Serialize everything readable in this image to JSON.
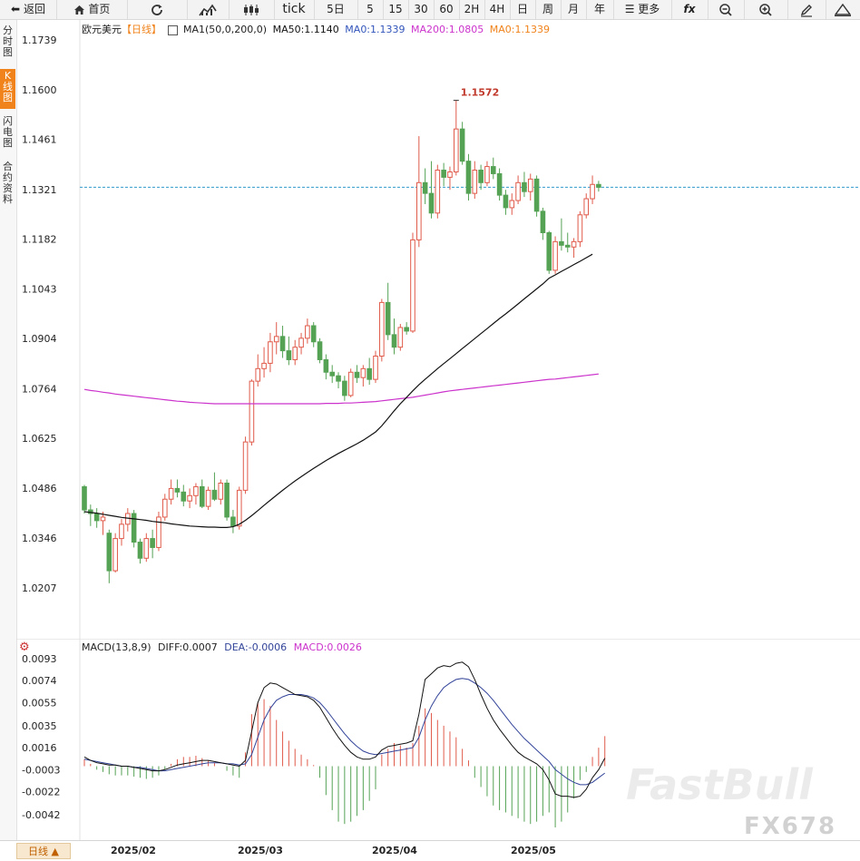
{
  "toolbar": {
    "back_label": "返回",
    "home_label": "首页",
    "tick_label": "tick",
    "periods": [
      "5日",
      "5",
      "15",
      "30",
      "60",
      "2H",
      "4H",
      "日",
      "周",
      "月",
      "年"
    ],
    "more_label": "更多"
  },
  "sidebar": {
    "tabs": [
      "分时图",
      "K线图",
      "闪电图",
      "合约资料"
    ],
    "active_index": 1
  },
  "legend_main": {
    "symbol": "欧元美元",
    "period": "【日线】",
    "ma1": "MA1(50,0,200,0)",
    "ma50": "MA50:1.1140",
    "ma0_blue": "MA0:1.1339",
    "ma200": "MA200:1.0805",
    "ma0_orange": "MA0:1.1339"
  },
  "legend_macd": {
    "name": "MACD(13,8,9)",
    "diff": "DIFF:0.0007",
    "dea": "DEA:-0.0006",
    "macd": "MACD:0.0026"
  },
  "bottom": {
    "period_button": "日线",
    "date_labels": [
      "2025/02",
      "2025/03",
      "2025/04",
      "2025/05"
    ]
  },
  "watermark": {
    "brand": "FastBull",
    "code": "FX678"
  },
  "colors": {
    "up": "#e05a4a",
    "down": "#55a255",
    "ma50": "#111111",
    "ma200": "#cc33cc",
    "current_line": "#3399cc",
    "diff": "#111111",
    "dea": "#334499",
    "accent": "#f0831b"
  },
  "chart_data": [
    {
      "type": "candlestick",
      "title": "欧元美元【日线】",
      "y_ticks": [
        "1.1739",
        "1.1600",
        "1.1461",
        "1.1321",
        "1.1182",
        "1.1043",
        "1.0904",
        "1.0764",
        "1.0625",
        "1.0486",
        "1.0346",
        "1.0207"
      ],
      "ylim": [
        1.015,
        1.177
      ],
      "current_price": 1.1327,
      "high_annotation": "1.1572",
      "x_labels": [
        "2025/02",
        "2025/03",
        "2025/04",
        "2025/05"
      ],
      "candles": [
        {
          "o": 1.049,
          "h": 1.0495,
          "l": 1.0415,
          "c": 1.0425
        },
        {
          "o": 1.0425,
          "h": 1.044,
          "l": 1.038,
          "c": 1.0415
        },
        {
          "o": 1.0415,
          "h": 1.043,
          "l": 1.0375,
          "c": 1.0395
        },
        {
          "o": 1.0395,
          "h": 1.042,
          "l": 1.0355,
          "c": 1.0405
        },
        {
          "o": 1.036,
          "h": 1.037,
          "l": 1.022,
          "c": 1.0255
        },
        {
          "o": 1.0255,
          "h": 1.036,
          "l": 1.025,
          "c": 1.0345
        },
        {
          "o": 1.0345,
          "h": 1.04,
          "l": 1.0325,
          "c": 1.0385
        },
        {
          "o": 1.0385,
          "h": 1.043,
          "l": 1.0365,
          "c": 1.0415
        },
        {
          "o": 1.0415,
          "h": 1.0425,
          "l": 1.032,
          "c": 1.0335
        },
        {
          "o": 1.0335,
          "h": 1.0345,
          "l": 1.0275,
          "c": 1.029
        },
        {
          "o": 1.029,
          "h": 1.036,
          "l": 1.028,
          "c": 1.0345
        },
        {
          "o": 1.0345,
          "h": 1.037,
          "l": 1.029,
          "c": 1.032
        },
        {
          "o": 1.032,
          "h": 1.042,
          "l": 1.031,
          "c": 1.0405
        },
        {
          "o": 1.0405,
          "h": 1.047,
          "l": 1.0395,
          "c": 1.0455
        },
        {
          "o": 1.0455,
          "h": 1.051,
          "l": 1.044,
          "c": 1.0485
        },
        {
          "o": 1.0485,
          "h": 1.051,
          "l": 1.046,
          "c": 1.0475
        },
        {
          "o": 1.0475,
          "h": 1.0495,
          "l": 1.0435,
          "c": 1.045
        },
        {
          "o": 1.045,
          "h": 1.0485,
          "l": 1.043,
          "c": 1.0465
        },
        {
          "o": 1.0465,
          "h": 1.05,
          "l": 1.044,
          "c": 1.049
        },
        {
          "o": 1.049,
          "h": 1.051,
          "l": 1.043,
          "c": 1.0435
        },
        {
          "o": 1.0435,
          "h": 1.049,
          "l": 1.0425,
          "c": 1.048
        },
        {
          "o": 1.048,
          "h": 1.053,
          "l": 1.045,
          "c": 1.0455
        },
        {
          "o": 1.0455,
          "h": 1.051,
          "l": 1.044,
          "c": 1.05
        },
        {
          "o": 1.05,
          "h": 1.051,
          "l": 1.0395,
          "c": 1.0405
        },
        {
          "o": 1.0405,
          "h": 1.0425,
          "l": 1.036,
          "c": 1.038
        },
        {
          "o": 1.038,
          "h": 1.049,
          "l": 1.037,
          "c": 1.048
        },
        {
          "o": 1.048,
          "h": 1.063,
          "l": 1.047,
          "c": 1.0615
        },
        {
          "o": 1.0615,
          "h": 1.079,
          "l": 1.0605,
          "c": 1.0785
        },
        {
          "o": 1.0785,
          "h": 1.086,
          "l": 1.077,
          "c": 1.082
        },
        {
          "o": 1.082,
          "h": 1.088,
          "l": 1.0795,
          "c": 1.0835
        },
        {
          "o": 1.0835,
          "h": 1.092,
          "l": 1.081,
          "c": 1.0895
        },
        {
          "o": 1.0895,
          "h": 1.095,
          "l": 1.086,
          "c": 1.091
        },
        {
          "o": 1.091,
          "h": 1.094,
          "l": 1.085,
          "c": 1.087
        },
        {
          "o": 1.087,
          "h": 1.091,
          "l": 1.083,
          "c": 1.0845
        },
        {
          "o": 1.0845,
          "h": 1.09,
          "l": 1.083,
          "c": 1.088
        },
        {
          "o": 1.088,
          "h": 1.092,
          "l": 1.086,
          "c": 1.0905
        },
        {
          "o": 1.0905,
          "h": 1.096,
          "l": 1.089,
          "c": 1.094
        },
        {
          "o": 1.094,
          "h": 1.095,
          "l": 1.088,
          "c": 1.0895
        },
        {
          "o": 1.0895,
          "h": 1.0905,
          "l": 1.0835,
          "c": 1.0845
        },
        {
          "o": 1.0845,
          "h": 1.086,
          "l": 1.079,
          "c": 1.081
        },
        {
          "o": 1.081,
          "h": 1.083,
          "l": 1.078,
          "c": 1.08
        },
        {
          "o": 1.08,
          "h": 1.081,
          "l": 1.0765,
          "c": 1.0785
        },
        {
          "o": 1.0785,
          "h": 1.08,
          "l": 1.073,
          "c": 1.0745
        },
        {
          "o": 1.0745,
          "h": 1.082,
          "l": 1.074,
          "c": 1.081
        },
        {
          "o": 1.081,
          "h": 1.083,
          "l": 1.078,
          "c": 1.0795
        },
        {
          "o": 1.0795,
          "h": 1.083,
          "l": 1.077,
          "c": 1.082
        },
        {
          "o": 1.082,
          "h": 1.085,
          "l": 1.0775,
          "c": 1.079
        },
        {
          "o": 1.079,
          "h": 1.087,
          "l": 1.078,
          "c": 1.0855
        },
        {
          "o": 1.0855,
          "h": 1.1015,
          "l": 1.084,
          "c": 1.1005
        },
        {
          "o": 1.1005,
          "h": 1.106,
          "l": 1.09,
          "c": 1.0915
        },
        {
          "o": 1.0915,
          "h": 1.096,
          "l": 1.086,
          "c": 1.088
        },
        {
          "o": 1.088,
          "h": 1.0945,
          "l": 1.087,
          "c": 1.0935
        },
        {
          "o": 1.0935,
          "h": 1.095,
          "l": 1.0915,
          "c": 1.0925
        },
        {
          "o": 1.0925,
          "h": 1.12,
          "l": 1.092,
          "c": 1.118
        },
        {
          "o": 1.118,
          "h": 1.147,
          "l": 1.116,
          "c": 1.134
        },
        {
          "o": 1.134,
          "h": 1.138,
          "l": 1.128,
          "c": 1.131
        },
        {
          "o": 1.131,
          "h": 1.14,
          "l": 1.124,
          "c": 1.1255
        },
        {
          "o": 1.1255,
          "h": 1.139,
          "l": 1.124,
          "c": 1.1375
        },
        {
          "o": 1.1375,
          "h": 1.1395,
          "l": 1.133,
          "c": 1.1355
        },
        {
          "o": 1.1355,
          "h": 1.1385,
          "l": 1.132,
          "c": 1.137
        },
        {
          "o": 1.137,
          "h": 1.157,
          "l": 1.136,
          "c": 1.149
        },
        {
          "o": 1.149,
          "h": 1.151,
          "l": 1.139,
          "c": 1.14
        },
        {
          "o": 1.14,
          "h": 1.142,
          "l": 1.129,
          "c": 1.131
        },
        {
          "o": 1.131,
          "h": 1.14,
          "l": 1.1295,
          "c": 1.1375
        },
        {
          "o": 1.1375,
          "h": 1.139,
          "l": 1.132,
          "c": 1.134
        },
        {
          "o": 1.134,
          "h": 1.14,
          "l": 1.133,
          "c": 1.1385
        },
        {
          "o": 1.1385,
          "h": 1.141,
          "l": 1.135,
          "c": 1.1365
        },
        {
          "o": 1.1365,
          "h": 1.138,
          "l": 1.129,
          "c": 1.1305
        },
        {
          "o": 1.1305,
          "h": 1.132,
          "l": 1.125,
          "c": 1.127
        },
        {
          "o": 1.127,
          "h": 1.131,
          "l": 1.125,
          "c": 1.129
        },
        {
          "o": 1.129,
          "h": 1.136,
          "l": 1.128,
          "c": 1.134
        },
        {
          "o": 1.134,
          "h": 1.137,
          "l": 1.13,
          "c": 1.1315
        },
        {
          "o": 1.1315,
          "h": 1.1365,
          "l": 1.129,
          "c": 1.135
        },
        {
          "o": 1.135,
          "h": 1.136,
          "l": 1.1245,
          "c": 1.126
        },
        {
          "o": 1.126,
          "h": 1.127,
          "l": 1.118,
          "c": 1.12
        },
        {
          "o": 1.12,
          "h": 1.1205,
          "l": 1.1085,
          "c": 1.1095
        },
        {
          "o": 1.1095,
          "h": 1.119,
          "l": 1.1085,
          "c": 1.1175
        },
        {
          "o": 1.1175,
          "h": 1.124,
          "l": 1.115,
          "c": 1.1165
        },
        {
          "o": 1.1165,
          "h": 1.12,
          "l": 1.1145,
          "c": 1.116
        },
        {
          "o": 1.116,
          "h": 1.1185,
          "l": 1.113,
          "c": 1.1175
        },
        {
          "o": 1.1175,
          "h": 1.126,
          "l": 1.116,
          "c": 1.125
        },
        {
          "o": 1.125,
          "h": 1.131,
          "l": 1.124,
          "c": 1.1295
        },
        {
          "o": 1.1295,
          "h": 1.136,
          "l": 1.128,
          "c": 1.1335
        },
        {
          "o": 1.1335,
          "h": 1.1345,
          "l": 1.1315,
          "c": 1.1327
        }
      ],
      "ma50": [
        1.042,
        1.0418,
        1.0416,
        1.0413,
        1.041,
        1.0407,
        1.0404,
        1.0402,
        1.04,
        1.0398,
        1.0396,
        1.0393,
        1.0391,
        1.0389,
        1.0386,
        1.0384,
        1.0382,
        1.038,
        1.0379,
        1.0378,
        1.0377,
        1.0377,
        1.0376,
        1.0376,
        1.0378,
        1.0385,
        1.0396,
        1.0409,
        1.0423,
        1.0438,
        1.0452,
        1.0466,
        1.048,
        1.0493,
        1.0506,
        1.0518,
        1.053,
        1.0541,
        1.0552,
        1.0563,
        1.0573,
        1.0583,
        1.0592,
        1.0601,
        1.061,
        1.062,
        1.0631,
        1.0643,
        1.066,
        1.0681,
        1.0702,
        1.0722,
        1.074,
        1.0758,
        1.0775,
        1.079,
        1.0805,
        1.082,
        1.0834,
        1.0848,
        1.0862,
        1.0876,
        1.089,
        1.0904,
        1.0918,
        1.0932,
        1.0946,
        1.096,
        1.0973,
        1.0987,
        1.1001,
        1.1015,
        1.1029,
        1.1043,
        1.1057,
        1.1073,
        1.1082,
        1.1092,
        1.1101,
        1.1111,
        1.112,
        1.113,
        1.114
      ],
      "ma200": [
        1.0762,
        1.0759,
        1.0757,
        1.0754,
        1.0752,
        1.0749,
        1.0747,
        1.0745,
        1.0743,
        1.0741,
        1.0739,
        1.0737,
        1.0735,
        1.0733,
        1.0731,
        1.0729,
        1.0728,
        1.0726,
        1.0725,
        1.0724,
        1.0723,
        1.0722,
        1.0722,
        1.0722,
        1.0722,
        1.0722,
        1.0722,
        1.0722,
        1.0722,
        1.0722,
        1.0722,
        1.0722,
        1.0722,
        1.0722,
        1.0722,
        1.0722,
        1.0722,
        1.0722,
        1.0722,
        1.0723,
        1.0723,
        1.0723,
        1.0724,
        1.0724,
        1.0725,
        1.0726,
        1.0727,
        1.0728,
        1.073,
        1.0732,
        1.0734,
        1.0736,
        1.0738,
        1.074,
        1.0743,
        1.0746,
        1.0749,
        1.0752,
        1.0755,
        1.0758,
        1.076,
        1.0762,
        1.0764,
        1.0766,
        1.0768,
        1.077,
        1.0772,
        1.0774,
        1.0776,
        1.0778,
        1.078,
        1.0782,
        1.0784,
        1.0786,
        1.0788,
        1.079,
        1.0791,
        1.0793,
        1.0795,
        1.0797,
        1.0799,
        1.0801,
        1.0803,
        1.0805
      ]
    },
    {
      "type": "macd",
      "title": "MACD(13,8,9)",
      "y_ticks": [
        "0.0093",
        "0.0074",
        "0.0055",
        "0.0035",
        "0.0016",
        "-0.0003",
        "-0.0022",
        "-0.0042"
      ],
      "ylim": [
        -0.0058,
        0.01
      ],
      "diff": [
        0.0008,
        0.0005,
        0.0003,
        0.0002,
        0.0001,
        0.0001,
        0.0,
        0.0,
        -0.0001,
        -0.0002,
        -0.0003,
        -0.0004,
        -0.0004,
        -0.0003,
        -0.0001,
        0.0001,
        0.0002,
        0.0003,
        0.0004,
        0.0005,
        0.0005,
        0.0004,
        0.0003,
        0.0002,
        0.0001,
        0.0,
        0.0005,
        0.003,
        0.0055,
        0.0068,
        0.0072,
        0.0071,
        0.0068,
        0.0065,
        0.0062,
        0.0061,
        0.006,
        0.0057,
        0.0051,
        0.0042,
        0.0033,
        0.0025,
        0.0018,
        0.0012,
        0.0008,
        0.0006,
        0.0006,
        0.0008,
        0.0014,
        0.0017,
        0.0018,
        0.0019,
        0.002,
        0.0022,
        0.0045,
        0.0075,
        0.008,
        0.0085,
        0.0087,
        0.0086,
        0.0089,
        0.009,
        0.0086,
        0.0075,
        0.0062,
        0.005,
        0.004,
        0.0032,
        0.0025,
        0.0018,
        0.0012,
        0.0008,
        0.0005,
        0.0002,
        -0.0003,
        -0.0012,
        -0.0024,
        -0.0026,
        -0.0026,
        -0.0027,
        -0.0026,
        -0.002,
        -0.001,
        -0.0003,
        0.0007
      ],
      "dea": [
        0.0006,
        0.0005,
        0.0004,
        0.0003,
        0.0002,
        0.0001,
        0.0,
        0.0,
        -0.0001,
        -0.0001,
        -0.0002,
        -0.0003,
        -0.0004,
        -0.0004,
        -0.0003,
        -0.0002,
        -0.0001,
        0.0,
        0.0001,
        0.0002,
        0.0003,
        0.0003,
        0.0003,
        0.0002,
        0.0002,
        0.0001,
        0.0002,
        0.001,
        0.0025,
        0.004,
        0.005,
        0.0057,
        0.006,
        0.0062,
        0.0062,
        0.0062,
        0.0061,
        0.0059,
        0.0055,
        0.0049,
        0.0042,
        0.0035,
        0.0028,
        0.0022,
        0.0017,
        0.0013,
        0.0011,
        0.001,
        0.0011,
        0.0012,
        0.0013,
        0.0014,
        0.0015,
        0.0016,
        0.0025,
        0.004,
        0.0052,
        0.0061,
        0.0068,
        0.0072,
        0.0075,
        0.0076,
        0.0075,
        0.0072,
        0.0068,
        0.0063,
        0.0057,
        0.005,
        0.0043,
        0.0036,
        0.003,
        0.0024,
        0.0019,
        0.0014,
        0.0009,
        0.0004,
        -0.0003,
        -0.0007,
        -0.0011,
        -0.0014,
        -0.0016,
        -0.0016,
        -0.0014,
        -0.001,
        -0.0006
      ],
      "macd": [
        0.0006,
        0.0002,
        -0.0003,
        -0.0005,
        -0.0007,
        -0.0008,
        -0.0008,
        -0.0008,
        -0.0009,
        -0.001,
        -0.0011,
        -0.001,
        -0.0008,
        -0.0003,
        0.0002,
        0.0006,
        0.0008,
        0.0008,
        0.0009,
        0.0007,
        0.0005,
        0.0003,
        0.0,
        -0.0004,
        -0.0008,
        -0.001,
        0.0012,
        0.0045,
        0.0055,
        0.0058,
        0.0052,
        0.004,
        0.003,
        0.0022,
        0.0015,
        0.001,
        0.0006,
        0.0001,
        -0.001,
        -0.0025,
        -0.0038,
        -0.0048,
        -0.005,
        -0.0048,
        -0.0043,
        -0.0038,
        -0.003,
        -0.002,
        0.001,
        0.0015,
        0.002,
        0.0018,
        0.0016,
        0.002,
        0.0035,
        0.005,
        0.0046,
        0.004,
        0.0035,
        0.003,
        0.0025,
        0.0015,
        0.0005,
        -0.001,
        -0.0018,
        -0.0026,
        -0.0034,
        -0.0038,
        -0.004,
        -0.0043,
        -0.0045,
        -0.0048,
        -0.005,
        -0.0048,
        -0.0043,
        -0.004,
        -0.0053,
        -0.0048,
        -0.004,
        -0.0028,
        -0.0012,
        -0.0005,
        0.0008,
        0.0016,
        0.0026
      ]
    }
  ]
}
